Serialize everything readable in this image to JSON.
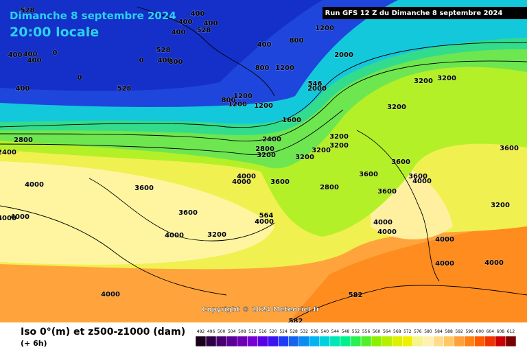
{
  "header": {
    "date": "Dimanche 8 septembre 2024",
    "time": "20:00 locale",
    "run": "Run GFS 12 Z du Dimanche 8 septembre 2024"
  },
  "copyright": "Copyright © 2024 Meteociel.fr",
  "footer": {
    "title": "Iso 0°(m) et z500-z1000 (dam)",
    "step": "(+ 6h)"
  },
  "contour_labels": [
    "528",
    "400",
    "400",
    "400",
    "528",
    "400",
    "0",
    "400",
    "400",
    "0",
    "400",
    "400",
    "0",
    "0",
    "400",
    "528",
    "800",
    "1200",
    "400",
    "800",
    "800",
    "1200",
    "528",
    "800",
    "1200",
    "1200",
    "1200",
    "546",
    "2000",
    "2000",
    "3200",
    "3200",
    "3200",
    "1600",
    "2800",
    "2400",
    "2800",
    "3200",
    "3200",
    "3200",
    "3200",
    "3600",
    "3600",
    "3200",
    "3600",
    "4000",
    "4000",
    "3600",
    "4000",
    "2800",
    "3600",
    "3600",
    "3200",
    "4000",
    "3600",
    "4000",
    "3200",
    "4000",
    "564",
    "4000",
    "4000",
    "4000",
    "4000",
    "4000",
    "4000",
    "4000",
    "582",
    "582",
    "3600",
    "4000",
    "2400"
  ],
  "legend": {
    "values": [
      492,
      496,
      500,
      504,
      508,
      512,
      516,
      520,
      524,
      528,
      532,
      536,
      540,
      544,
      548,
      552,
      556,
      560,
      564,
      568,
      572,
      576,
      580,
      584,
      588,
      592,
      596,
      600,
      604,
      608,
      612
    ],
    "colors": [
      "#1a001a",
      "#2d0046",
      "#46006e",
      "#5a0096",
      "#6e00b4",
      "#7800d2",
      "#5a00e6",
      "#3c14f0",
      "#1e3cf5",
      "#1464f0",
      "#0a8cf0",
      "#00b4f0",
      "#00d2dc",
      "#00e6b4",
      "#00f08c",
      "#28f050",
      "#50f028",
      "#8cf000",
      "#b4f000",
      "#dcf000",
      "#f0f000",
      "#f5f58c",
      "#fff0b4",
      "#ffdc8c",
      "#ffc864",
      "#ffa03c",
      "#ff8214",
      "#ff5a00",
      "#f03200",
      "#c80000",
      "#780000"
    ]
  }
}
